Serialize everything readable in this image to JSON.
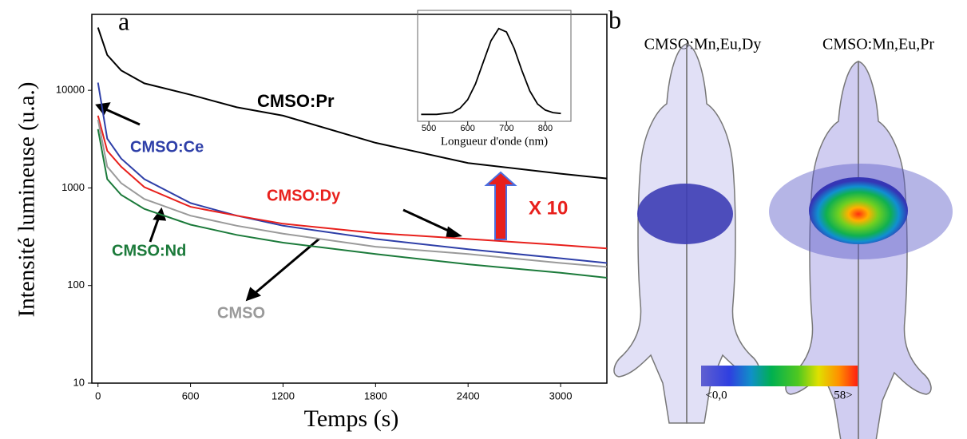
{
  "chart_data": [
    {
      "type": "line",
      "annotation": "a",
      "note_label": "X 10",
      "x_label": "Temps (s)",
      "y_label": "Intensité lumineuse (u.a.)",
      "log_y": true,
      "xlim": [
        -40,
        3300
      ],
      "ylim": [
        10,
        60000
      ],
      "xticks": [
        0,
        600,
        1200,
        1800,
        2400,
        3000
      ],
      "yticks": [
        10,
        100,
        1000,
        10000
      ],
      "x": [
        0,
        60,
        150,
        300,
        600,
        900,
        1200,
        1800,
        2400,
        3000,
        3300
      ],
      "series": [
        {
          "name": "CMSO:Pr",
          "color": "#000000",
          "values": [
            44000,
            23000,
            16000,
            11800,
            9000,
            6700,
            5500,
            2900,
            1800,
            1400,
            1250
          ]
        },
        {
          "name": "CMSO:Ce",
          "color": "#2e3fa8",
          "values": [
            12000,
            3200,
            2000,
            1230,
            700,
            520,
            410,
            300,
            235,
            190,
            170
          ]
        },
        {
          "name": "CMSO:Dy",
          "color": "#e8201c",
          "values": [
            5500,
            2400,
            1650,
            1020,
            640,
            520,
            430,
            345,
            300,
            260,
            240
          ]
        },
        {
          "name": "CMSO:Nd",
          "color": "#1b7a3a",
          "values": [
            4000,
            1230,
            850,
            610,
            420,
            330,
            275,
            210,
            165,
            135,
            120
          ]
        },
        {
          "name": "CMSO",
          "color": "#9a9a9a",
          "values": [
            5000,
            1650,
            1120,
            770,
            520,
            410,
            340,
            250,
            210,
            170,
            155
          ]
        }
      ]
    },
    {
      "type": "line",
      "x_label": "Longueur d'onde (nm)",
      "xlim": [
        471,
        866
      ],
      "ylim": [
        -0.08,
        1.2
      ],
      "xticks": [
        500,
        600,
        700,
        800
      ],
      "x": [
        480,
        500,
        520,
        540,
        560,
        580,
        600,
        620,
        640,
        660,
        680,
        700,
        720,
        740,
        760,
        780,
        800,
        820,
        840
      ],
      "series": [
        {
          "color": "#000000",
          "values": [
            0,
            0,
            0,
            0.01,
            0.02,
            0.07,
            0.17,
            0.35,
            0.6,
            0.85,
            0.99,
            0.95,
            0.76,
            0.5,
            0.27,
            0.12,
            0.05,
            0.02,
            0.01
          ]
        }
      ]
    }
  ],
  "panel_b": {
    "annotation": "b",
    "titles": [
      "CMSO:Mn,Eu,Dy",
      "CMSO:Mn,Eu,Pr"
    ],
    "colorbar": {
      "lim": [
        0,
        58
      ],
      "ticks": [
        {
          "value": 0,
          "label": "<0,0"
        },
        {
          "value": 58,
          "label": "58>"
        }
      ]
    }
  }
}
